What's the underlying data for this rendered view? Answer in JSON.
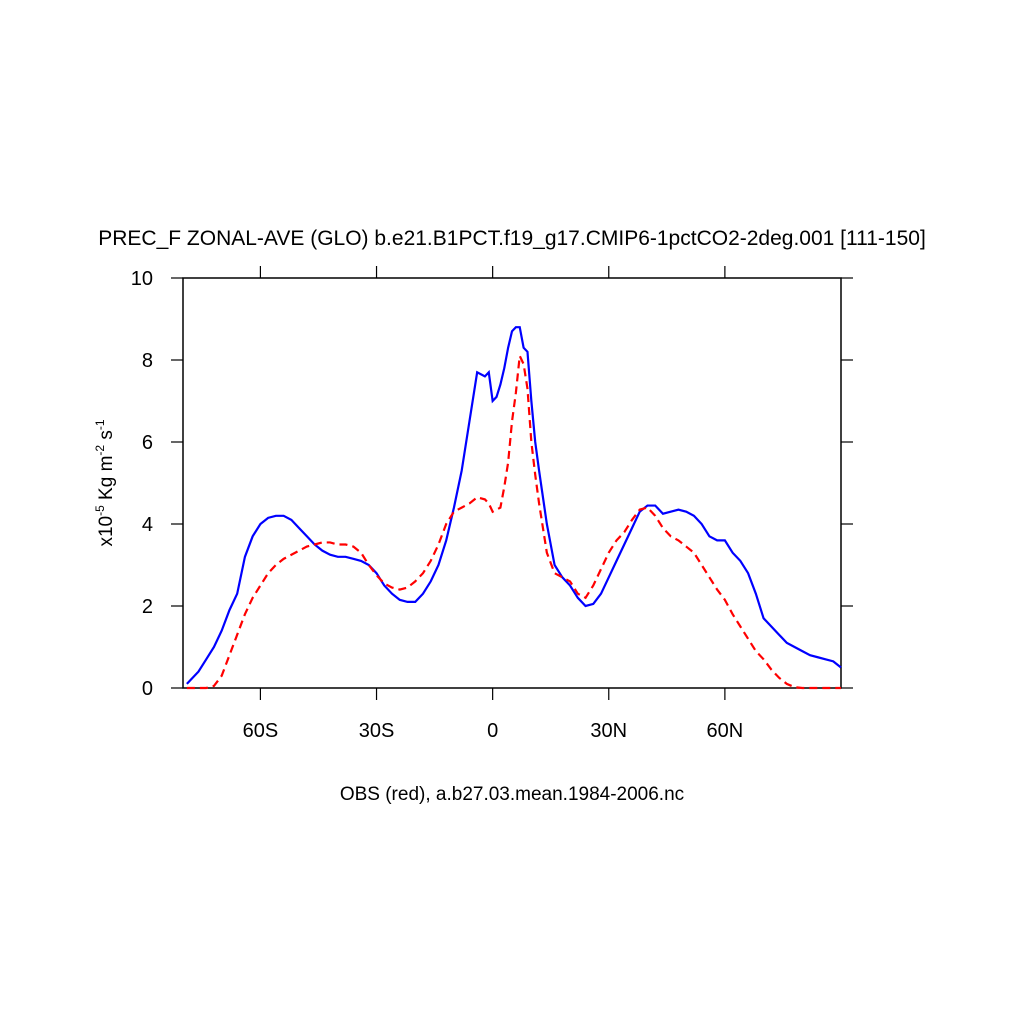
{
  "chart_data": {
    "type": "line",
    "title": "PREC_F ZONAL-AVE (GLO) b.e21.B1PCT.f19_g17.CMIP6-1pctCO2-2deg.001 [111-150]",
    "xlabel": "OBS (red), a.b27.03.mean.1984-2006.nc",
    "ylabel_parts": [
      "x10",
      "-5",
      " Kg m",
      "-2",
      " s",
      "-1"
    ],
    "xlim": [
      -80,
      90
    ],
    "ylim": [
      0,
      10
    ],
    "xticks": [
      {
        "value": -60,
        "label": "60S"
      },
      {
        "value": -30,
        "label": "30S"
      },
      0,
      {
        "value": 30,
        "label": "30N"
      },
      {
        "value": 60,
        "label": "60N"
      }
    ],
    "yticks": [
      0,
      2,
      4,
      6,
      8,
      10
    ],
    "x": [
      -79,
      -76,
      -74,
      -72,
      -70,
      -68,
      -66,
      -64,
      -62,
      -60,
      -58,
      -56,
      -54,
      -52,
      -50,
      -48,
      -46,
      -44,
      -42,
      -40,
      -38,
      -36,
      -34,
      -32,
      -30,
      -28,
      -26,
      -24,
      -22,
      -20,
      -18,
      -16,
      -14,
      -12,
      -10,
      -8,
      -6,
      -4,
      -2,
      -1,
      0,
      1,
      2,
      3,
      4,
      5,
      6,
      7,
      8,
      9,
      10,
      11,
      12,
      14,
      16,
      18,
      20,
      22,
      24,
      26,
      28,
      30,
      32,
      34,
      36,
      38,
      40,
      42,
      44,
      46,
      48,
      50,
      52,
      54,
      56,
      58,
      60,
      62,
      64,
      66,
      68,
      70,
      72,
      74,
      76,
      78,
      80,
      82,
      84,
      86,
      88,
      90
    ],
    "series": [
      {
        "color": "#0000ff",
        "dash": "none",
        "values": [
          0.1,
          0.4,
          0.7,
          1.0,
          1.4,
          1.9,
          2.3,
          3.2,
          3.7,
          4.0,
          4.15,
          4.2,
          4.2,
          4.1,
          3.9,
          3.7,
          3.5,
          3.35,
          3.25,
          3.2,
          3.2,
          3.15,
          3.1,
          3.0,
          2.8,
          2.5,
          2.3,
          2.15,
          2.1,
          2.1,
          2.3,
          2.6,
          3.0,
          3.6,
          4.4,
          5.3,
          6.5,
          7.7,
          7.6,
          7.7,
          7.0,
          7.1,
          7.4,
          7.8,
          8.3,
          8.7,
          8.8,
          8.8,
          8.3,
          8.2,
          7.0,
          6.0,
          5.3,
          4.0,
          3.0,
          2.7,
          2.5,
          2.2,
          2.0,
          2.05,
          2.3,
          2.7,
          3.1,
          3.5,
          3.9,
          4.3,
          4.45,
          4.45,
          4.25,
          4.3,
          4.35,
          4.3,
          4.2,
          4.0,
          3.7,
          3.6,
          3.6,
          3.3,
          3.1,
          2.8,
          2.3,
          1.7,
          1.5,
          1.3,
          1.1,
          1.0,
          0.9,
          0.8,
          0.75,
          0.7,
          0.65,
          0.5
        ]
      },
      {
        "color": "#ff0000",
        "dash": "8 5",
        "values": [
          0,
          0,
          0,
          0.05,
          0.3,
          0.8,
          1.3,
          1.8,
          2.2,
          2.5,
          2.8,
          3.0,
          3.15,
          3.25,
          3.35,
          3.45,
          3.5,
          3.55,
          3.55,
          3.5,
          3.5,
          3.45,
          3.3,
          3.0,
          2.75,
          2.55,
          2.45,
          2.4,
          2.45,
          2.6,
          2.8,
          3.1,
          3.5,
          4.0,
          4.3,
          4.4,
          4.5,
          4.65,
          4.6,
          4.5,
          4.3,
          4.35,
          4.4,
          4.9,
          5.5,
          6.5,
          7.2,
          8.1,
          7.9,
          7.3,
          6.0,
          5.2,
          4.5,
          3.3,
          2.8,
          2.7,
          2.6,
          2.3,
          2.2,
          2.5,
          2.9,
          3.3,
          3.6,
          3.8,
          4.1,
          4.35,
          4.4,
          4.2,
          3.9,
          3.7,
          3.6,
          3.45,
          3.3,
          3.0,
          2.7,
          2.4,
          2.15,
          1.8,
          1.5,
          1.2,
          0.9,
          0.7,
          0.45,
          0.25,
          0.1,
          0.02,
          0,
          0,
          0,
          0,
          0,
          0
        ]
      }
    ]
  }
}
